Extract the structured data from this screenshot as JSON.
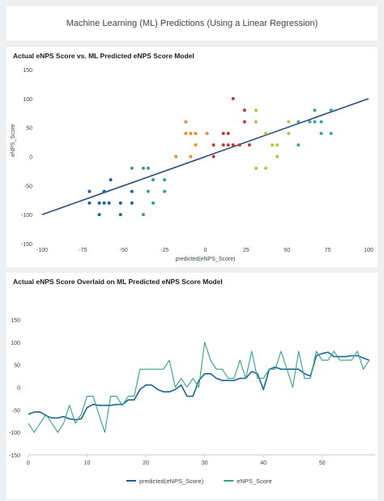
{
  "dashboard": {
    "title": "Machine Learning (ML) Predictions (Using a Linear Regression)"
  },
  "panel1": {
    "title": "Actual eNPS Score vs. ML Predicted eNPS Score Model"
  },
  "panel2": {
    "title": "Actual eNPS Score Overlaid on ML Predicted eNPS Score Model"
  },
  "chart_data": [
    {
      "type": "scatter",
      "xlabel": "predicted(eNPS_Score)",
      "ylabel": "eNPS_Score",
      "xlim": [
        -100,
        100
      ],
      "ylim": [
        -150,
        150
      ],
      "xticks": [
        -100,
        -75,
        -50,
        -25,
        0,
        25,
        50,
        75,
        100
      ],
      "yticks": [
        150,
        100,
        50,
        0,
        -50,
        -100,
        -150
      ],
      "regression_line": {
        "x": [
          -100,
          100
        ],
        "y": [
          -100,
          100
        ],
        "color": "#2b4d7a"
      },
      "points": [
        {
          "x": -71,
          "y": -60,
          "color": "#1a6496"
        },
        {
          "x": -71,
          "y": -80,
          "color": "#1a6496"
        },
        {
          "x": -65,
          "y": -80,
          "color": "#1a6496"
        },
        {
          "x": -65,
          "y": -100,
          "color": "#1a6496"
        },
        {
          "x": -62,
          "y": -60,
          "color": "#1a6496"
        },
        {
          "x": -62,
          "y": -80,
          "color": "#1a6496"
        },
        {
          "x": -59,
          "y": -80,
          "color": "#1a6496"
        },
        {
          "x": -58,
          "y": -40,
          "color": "#1a6496"
        },
        {
          "x": -52,
          "y": -100,
          "color": "#1a6496"
        },
        {
          "x": -52,
          "y": -80,
          "color": "#1a6496"
        },
        {
          "x": -45,
          "y": -60,
          "color": "#1a6496"
        },
        {
          "x": -45,
          "y": -80,
          "color": "#1a6496"
        },
        {
          "x": -45,
          "y": -20,
          "color": "#31a38a"
        },
        {
          "x": -38,
          "y": -20,
          "color": "#31a38a"
        },
        {
          "x": -38,
          "y": -100,
          "color": "#31a38a"
        },
        {
          "x": -35,
          "y": -20,
          "color": "#31a38a"
        },
        {
          "x": -35,
          "y": -60,
          "color": "#31a38a"
        },
        {
          "x": -32,
          "y": -40,
          "color": "#31a38a"
        },
        {
          "x": -32,
          "y": -80,
          "color": "#31a38a"
        },
        {
          "x": -25,
          "y": -60,
          "color": "#31a38a"
        },
        {
          "x": -25,
          "y": -40,
          "color": "#31a38a"
        },
        {
          "x": -18,
          "y": 0,
          "color": "#ed8b2f"
        },
        {
          "x": -12,
          "y": 60,
          "color": "#ed8b2f"
        },
        {
          "x": -12,
          "y": 40,
          "color": "#ed8b2f"
        },
        {
          "x": -9,
          "y": 40,
          "color": "#ed8b2f"
        },
        {
          "x": -9,
          "y": 0,
          "color": "#ed8b2f"
        },
        {
          "x": -6,
          "y": 20,
          "color": "#ed8b2f"
        },
        {
          "x": -6,
          "y": 40,
          "color": "#ed8b2f"
        },
        {
          "x": 1,
          "y": 40,
          "color": "#ed8b2f"
        },
        {
          "x": 5,
          "y": 20,
          "color": "#b83c3c"
        },
        {
          "x": 5,
          "y": 0,
          "color": "#b83c3c"
        },
        {
          "x": 11,
          "y": 40,
          "color": "#b83c3c"
        },
        {
          "x": 11,
          "y": 20,
          "color": "#b83c3c"
        },
        {
          "x": 14,
          "y": 40,
          "color": "#b83c3c"
        },
        {
          "x": 14,
          "y": 20,
          "color": "#b83c3c"
        },
        {
          "x": 17,
          "y": 20,
          "color": "#b83c3c"
        },
        {
          "x": 17,
          "y": 100,
          "color": "#b83c3c"
        },
        {
          "x": 21,
          "y": 20,
          "color": "#b83c3c"
        },
        {
          "x": 24,
          "y": 60,
          "color": "#b83c3c"
        },
        {
          "x": 24,
          "y": 80,
          "color": "#b83c3c"
        },
        {
          "x": 27,
          "y": 20,
          "color": "#b83c3c"
        },
        {
          "x": 31,
          "y": 60,
          "color": "#b5c33a"
        },
        {
          "x": 31,
          "y": 80,
          "color": "#b5c33a"
        },
        {
          "x": 31,
          "y": -20,
          "color": "#b5c33a"
        },
        {
          "x": 37,
          "y": -20,
          "color": "#b5c33a"
        },
        {
          "x": 37,
          "y": 40,
          "color": "#b5c33a"
        },
        {
          "x": 41,
          "y": 20,
          "color": "#b5c33a"
        },
        {
          "x": 44,
          "y": 20,
          "color": "#b5c33a"
        },
        {
          "x": 44,
          "y": 0,
          "color": "#b5c33a"
        },
        {
          "x": 51,
          "y": 60,
          "color": "#b5c33a"
        },
        {
          "x": 51,
          "y": 40,
          "color": "#b5c33a"
        },
        {
          "x": 57,
          "y": 60,
          "color": "#3aa3a8"
        },
        {
          "x": 57,
          "y": 20,
          "color": "#3aa3a8"
        },
        {
          "x": 64,
          "y": 60,
          "color": "#3aa3a8"
        },
        {
          "x": 67,
          "y": 80,
          "color": "#3aa3a8"
        },
        {
          "x": 67,
          "y": 60,
          "color": "#3aa3a8"
        },
        {
          "x": 71,
          "y": 40,
          "color": "#3aa3a8"
        },
        {
          "x": 71,
          "y": 60,
          "color": "#3aa3a8"
        },
        {
          "x": 77,
          "y": 80,
          "color": "#3aa3a8"
        },
        {
          "x": 77,
          "y": 40,
          "color": "#3aa3a8"
        }
      ]
    },
    {
      "type": "line",
      "xlim": [
        0,
        59
      ],
      "ylim": [
        -150,
        150
      ],
      "xticks": [
        0,
        10,
        20,
        30,
        40,
        50
      ],
      "yticks": [
        150,
        100,
        50,
        0,
        -50,
        -100,
        -150
      ],
      "legend": "bottom",
      "series": [
        {
          "name": "predicted(eNPS_Score)",
          "color": "#1a6496",
          "values": [
            -60,
            -55,
            -55,
            -63,
            -68,
            -68,
            -65,
            -70,
            -72,
            -70,
            -45,
            -38,
            -40,
            -40,
            -40,
            -38,
            -38,
            -28,
            -28,
            -5,
            5,
            5,
            -5,
            -10,
            -10,
            -5,
            5,
            -20,
            -20,
            15,
            30,
            30,
            20,
            15,
            15,
            15,
            20,
            20,
            35,
            30,
            -5,
            40,
            45,
            40,
            40,
            40,
            40,
            30,
            25,
            70,
            75,
            78,
            68,
            68,
            68,
            70,
            70,
            65,
            60
          ]
        },
        {
          "name": "eNPS_Score",
          "color": "#31a38a",
          "values": [
            -80,
            -100,
            -80,
            -60,
            -80,
            -100,
            -80,
            -40,
            -80,
            -60,
            -20,
            -20,
            -60,
            -100,
            -20,
            -20,
            -40,
            -20,
            -20,
            40,
            40,
            40,
            40,
            40,
            60,
            0,
            20,
            0,
            20,
            0,
            100,
            60,
            40,
            40,
            20,
            20,
            60,
            20,
            80,
            20,
            20,
            40,
            40,
            80,
            40,
            0,
            80,
            20,
            20,
            80,
            60,
            60,
            80,
            60,
            60,
            60,
            80,
            40,
            60
          ]
        }
      ]
    }
  ]
}
